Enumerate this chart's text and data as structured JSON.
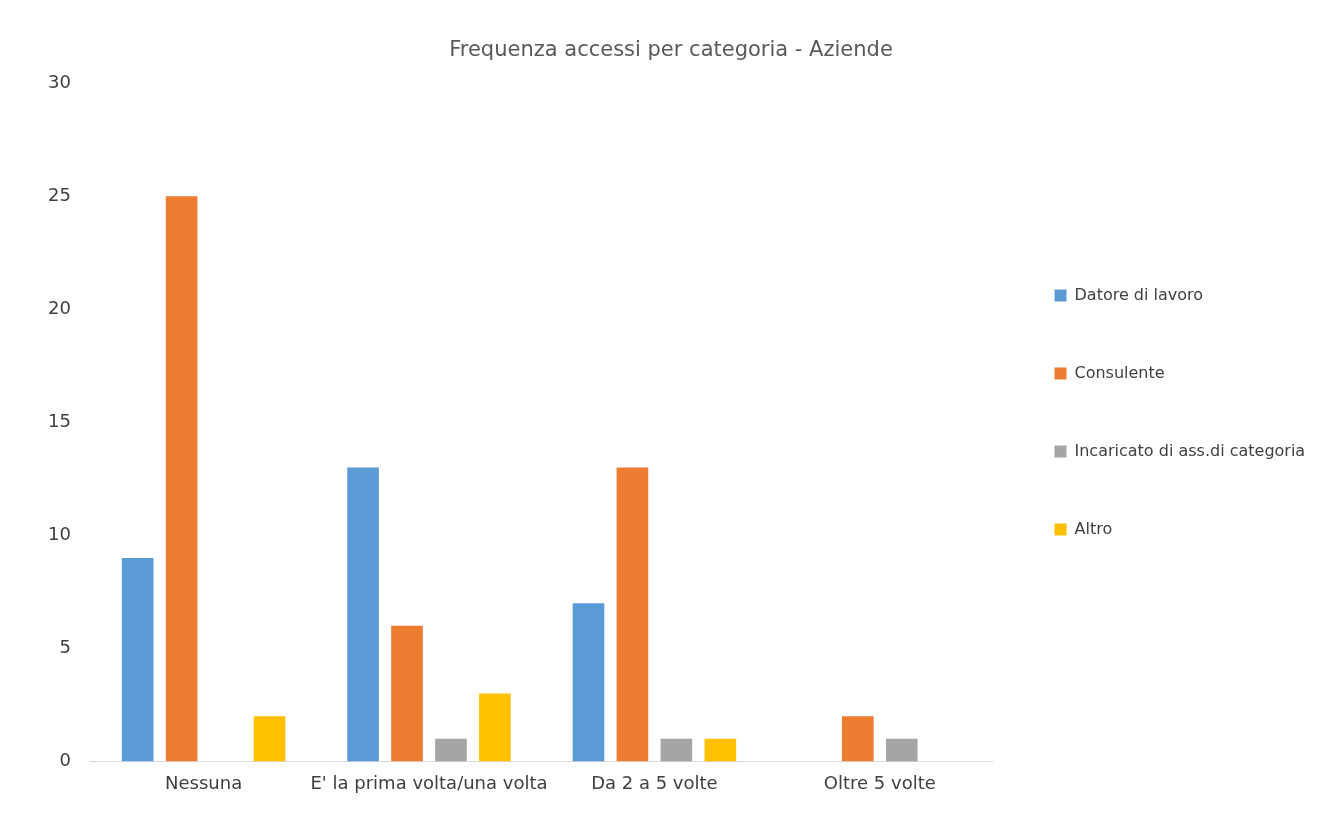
{
  "chart_data": {
    "type": "bar",
    "title": "Frequenza accessi per categoria - Aziende",
    "categories": [
      "Nessuna",
      "E' la prima volta/una volta",
      "Da 2 a 5 volte",
      "Oltre 5 volte"
    ],
    "series": [
      {
        "name": "Datore di lavoro",
        "color": "#5b9bd5",
        "values": [
          9,
          13,
          7,
          0
        ]
      },
      {
        "name": "Consulente",
        "color": "#ed7d31",
        "values": [
          25,
          6,
          13,
          2
        ]
      },
      {
        "name": "Incaricato di ass.di categoria",
        "color": "#a5a5a5",
        "values": [
          0,
          1,
          1,
          1
        ]
      },
      {
        "name": "Altro",
        "color": "#ffc000",
        "values": [
          2,
          3,
          1,
          0
        ]
      }
    ],
    "ylim": [
      0,
      30
    ],
    "yticks": [
      0,
      5,
      10,
      15,
      20,
      25,
      30
    ],
    "grid": false,
    "legend": "right"
  }
}
